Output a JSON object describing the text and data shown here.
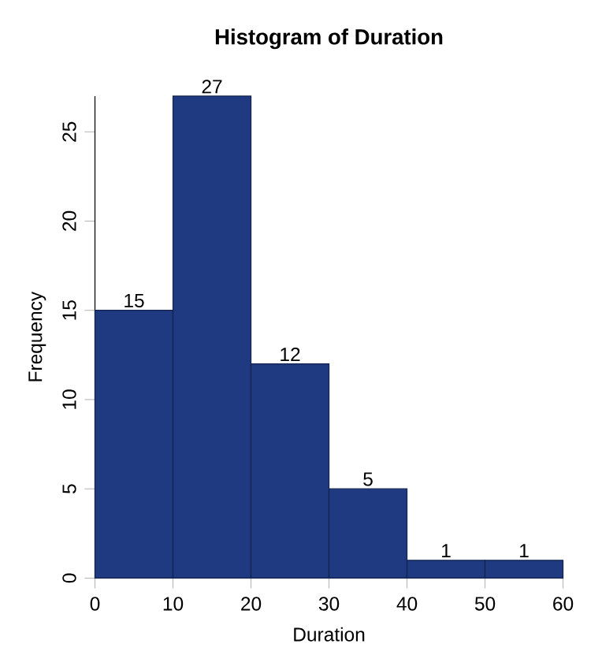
{
  "chart_data": {
    "type": "histogram",
    "title": "Histogram of Duration",
    "xlabel": "Duration",
    "ylabel": "Frequency",
    "bins": [
      0,
      10,
      20,
      30,
      40,
      50,
      60
    ],
    "values": [
      15,
      27,
      12,
      5,
      1,
      1
    ],
    "color": "#1f3a80",
    "xlim": [
      0,
      60
    ],
    "ylim": [
      0,
      27
    ],
    "xticks": [
      0,
      10,
      20,
      30,
      40,
      50,
      60
    ],
    "yticks": [
      0,
      5,
      10,
      15,
      20,
      25
    ],
    "data_labels": true
  }
}
